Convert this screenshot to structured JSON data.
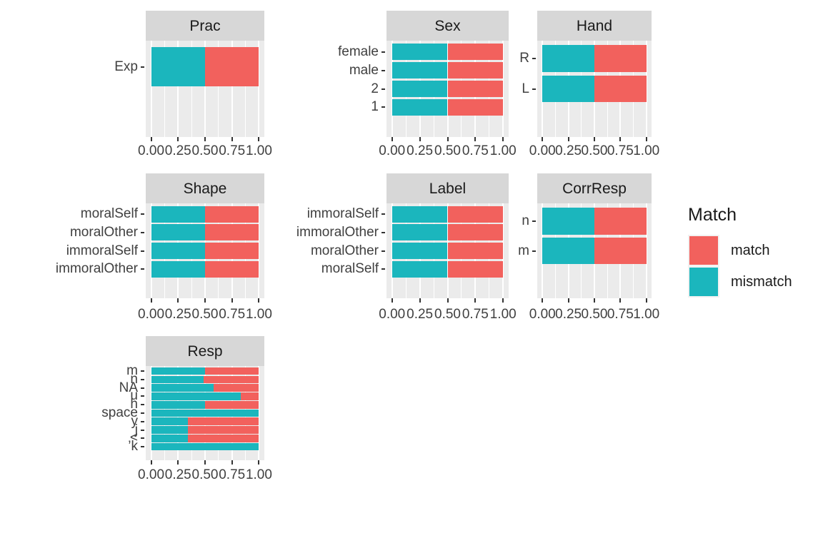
{
  "axis": {
    "x_ticks": [
      "0.00",
      "0.25",
      "0.50",
      "0.75",
      "1.00"
    ]
  },
  "legend": {
    "title": "Match",
    "entries": [
      {
        "label": "match",
        "color": "#F2615D"
      },
      {
        "label": "mismatch",
        "color": "#1BB6BD"
      }
    ]
  },
  "chart_data": [
    {
      "type": "bar",
      "orientation": "horizontal",
      "stacked": true,
      "title": "Prac",
      "categories": [
        "Exp"
      ],
      "series": [
        {
          "name": "mismatch",
          "values": [
            0.5
          ]
        },
        {
          "name": "match",
          "values": [
            0.5
          ]
        }
      ],
      "xlim": [
        0,
        1
      ],
      "grid": true
    },
    {
      "type": "bar",
      "orientation": "horizontal",
      "stacked": true,
      "title": "Sex",
      "categories": [
        "female",
        "male",
        "2",
        "1"
      ],
      "series": [
        {
          "name": "mismatch",
          "values": [
            0.5,
            0.5,
            0.5,
            0.5
          ]
        },
        {
          "name": "match",
          "values": [
            0.5,
            0.5,
            0.5,
            0.5
          ]
        }
      ],
      "xlim": [
        0,
        1
      ],
      "grid": true
    },
    {
      "type": "bar",
      "orientation": "horizontal",
      "stacked": true,
      "title": "Hand",
      "categories": [
        "R",
        "L"
      ],
      "series": [
        {
          "name": "mismatch",
          "values": [
            0.5,
            0.5
          ]
        },
        {
          "name": "match",
          "values": [
            0.5,
            0.5
          ]
        }
      ],
      "xlim": [
        0,
        1
      ],
      "grid": true
    },
    {
      "type": "bar",
      "orientation": "horizontal",
      "stacked": true,
      "title": "Shape",
      "categories": [
        "moralSelf",
        "moralOther",
        "immoralSelf",
        "immoralOther"
      ],
      "series": [
        {
          "name": "mismatch",
          "values": [
            0.5,
            0.5,
            0.5,
            0.5
          ]
        },
        {
          "name": "match",
          "values": [
            0.5,
            0.5,
            0.5,
            0.5
          ]
        }
      ],
      "xlim": [
        0,
        1
      ],
      "grid": true
    },
    {
      "type": "bar",
      "orientation": "horizontal",
      "stacked": true,
      "title": "Label",
      "categories": [
        "immoralSelf",
        "immoralOther",
        "moralOther",
        "moralSelf"
      ],
      "series": [
        {
          "name": "mismatch",
          "values": [
            0.5,
            0.5,
            0.5,
            0.5
          ]
        },
        {
          "name": "match",
          "values": [
            0.5,
            0.5,
            0.5,
            0.5
          ]
        }
      ],
      "xlim": [
        0,
        1
      ],
      "grid": true
    },
    {
      "type": "bar",
      "orientation": "horizontal",
      "stacked": true,
      "title": "CorrResp",
      "categories": [
        "n",
        "m"
      ],
      "series": [
        {
          "name": "mismatch",
          "values": [
            0.5,
            0.5
          ]
        },
        {
          "name": "match",
          "values": [
            0.5,
            0.5
          ]
        }
      ],
      "xlim": [
        0,
        1
      ],
      "grid": true
    },
    {
      "type": "bar",
      "orientation": "horizontal",
      "stacked": true,
      "title": "Resp",
      "categories": [
        "m",
        "n",
        "NA",
        "u",
        "h",
        "space",
        "y",
        "j",
        "<",
        "’k"
      ],
      "series": [
        {
          "name": "mismatch",
          "values": [
            0.5,
            0.49,
            0.58,
            0.83,
            0.5,
            1.0,
            0.34,
            0.34,
            0.34,
            1.0
          ]
        },
        {
          "name": "match",
          "values": [
            0.5,
            0.51,
            0.42,
            0.17,
            0.5,
            0.0,
            0.66,
            0.66,
            0.66,
            0.0
          ]
        }
      ],
      "xlim": [
        0,
        1
      ],
      "grid": true
    }
  ]
}
